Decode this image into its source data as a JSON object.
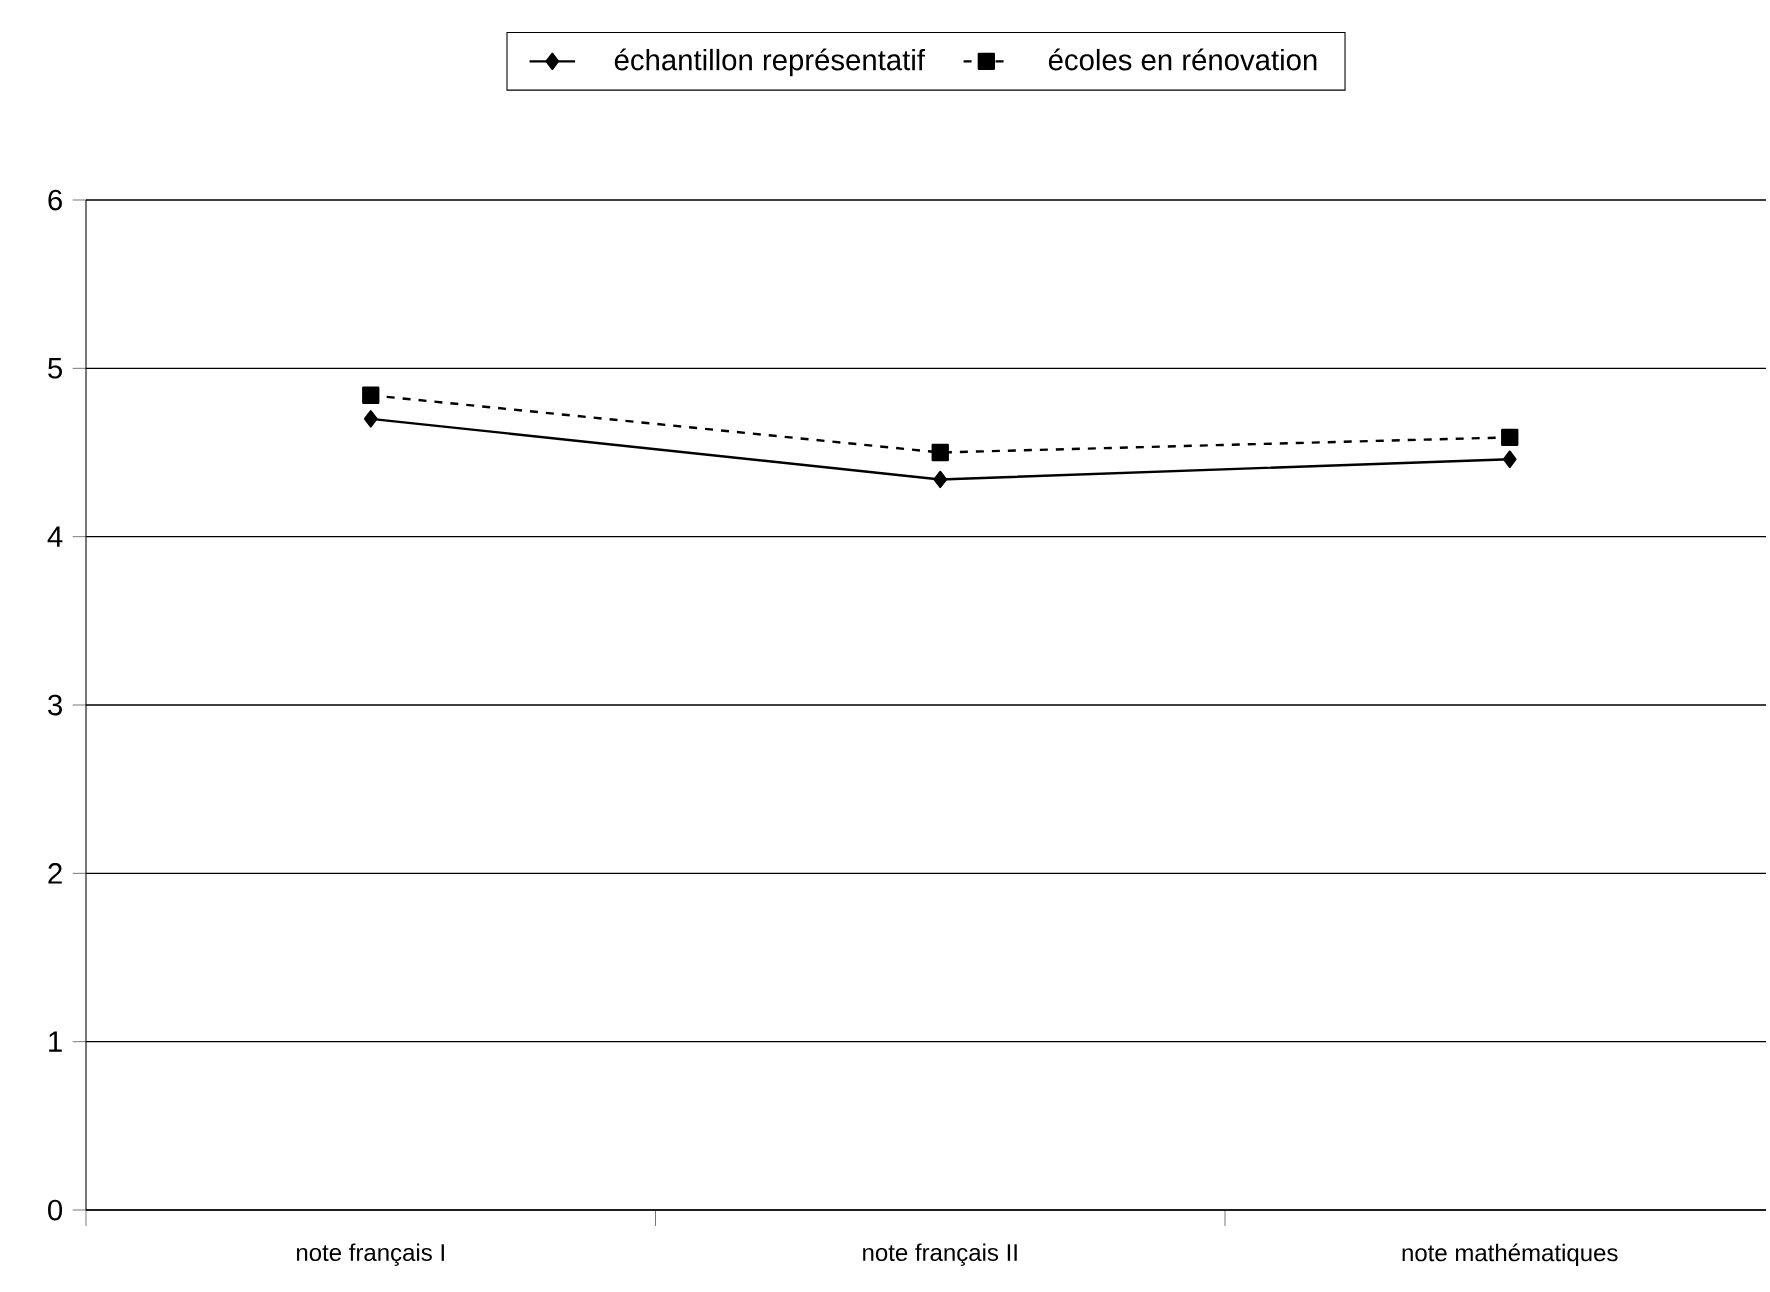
{
  "chart_data": {
    "type": "line",
    "categories": [
      "note français I",
      "note français II",
      "note mathématiques"
    ],
    "series": [
      {
        "name": "échantillon représentatif",
        "color": "#000000",
        "values": [
          4.7,
          4.34,
          4.46
        ],
        "marker": "diamond",
        "line_style": "solid"
      },
      {
        "name": "écoles en rénovation",
        "color": "#000000",
        "values": [
          4.84,
          4.5,
          4.59
        ],
        "marker": "square",
        "line_style": "dashed"
      }
    ],
    "ylim": [
      0,
      6
    ],
    "yticks": [
      0,
      1,
      2,
      3,
      4,
      5,
      6
    ],
    "grid": "y",
    "legend": "top"
  }
}
